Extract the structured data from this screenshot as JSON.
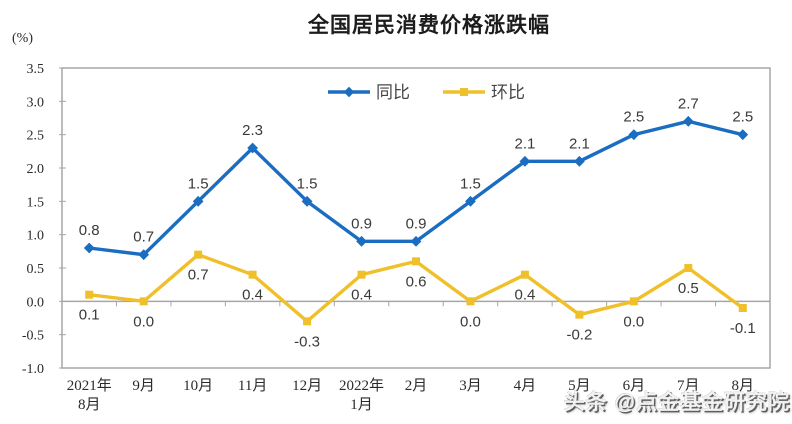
{
  "page": {
    "title": "全国居民消费价格涨跌幅",
    "y_axis_unit": "(%)",
    "watermark": "头条 @点金基金研究院"
  },
  "chart_data": {
    "type": "line",
    "title": "全国居民消费价格涨跌幅",
    "ylabel": "(%)",
    "xlabel": "",
    "ylim": [
      -1.0,
      3.5
    ],
    "ytick_step": 0.5,
    "yticks": [
      "3.5",
      "3.0",
      "2.5",
      "2.0",
      "1.5",
      "1.0",
      "0.5",
      "0.0",
      "-0.5",
      "-1.0"
    ],
    "grid": false,
    "legend_position": "top-center",
    "categories": [
      [
        "2021年",
        "8月"
      ],
      [
        "9月"
      ],
      [
        "10月"
      ],
      [
        "11月"
      ],
      [
        "12月"
      ],
      [
        "2022年",
        "1月"
      ],
      [
        "2月"
      ],
      [
        "3月"
      ],
      [
        "4月"
      ],
      [
        "5月"
      ],
      [
        "6月"
      ],
      [
        "7月"
      ],
      [
        "8月"
      ]
    ],
    "series": [
      {
        "name": "同比",
        "color": "#1b6dc1",
        "marker": "diamond",
        "label_position": "above",
        "values": [
          0.8,
          0.7,
          1.5,
          2.3,
          1.5,
          0.9,
          0.9,
          1.5,
          2.1,
          2.1,
          2.5,
          2.7,
          2.5
        ]
      },
      {
        "name": "环比",
        "color": "#f0c02a",
        "marker": "square",
        "label_position": "below",
        "values": [
          0.1,
          0.0,
          0.7,
          0.4,
          -0.3,
          0.4,
          0.6,
          0.0,
          0.4,
          -0.2,
          0.0,
          0.5,
          -0.1
        ]
      }
    ],
    "colors": {
      "axis": "#a6a6a6",
      "tick_text": "#2b2b2b",
      "data_label_text": "#3a3a3a"
    }
  }
}
